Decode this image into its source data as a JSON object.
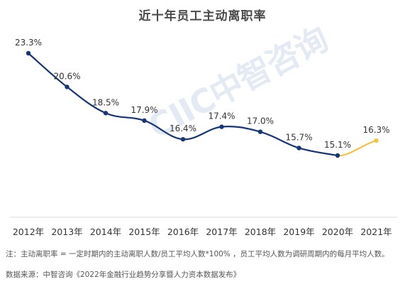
{
  "watermark_text": "CIIC中智咨询",
  "note": "注：主动离职率 = 一定时期内的主动离职人数/员工平均人数*100% ，员工平均人数为调研周期内的每月平均人数。",
  "source": "数据来源：中智咨询《2022年金融行业趋势分享暨人力资本数据发布》",
  "colors": {
    "line": "#16357a",
    "projection": "#f5c242",
    "axis": "#d9d9d9",
    "label": "#333333"
  },
  "chart_data": {
    "type": "line",
    "title": "近十年员工主动离职率",
    "categories": [
      "2012年",
      "2013年",
      "2014年",
      "2015年",
      "2016年",
      "2017年",
      "2018年",
      "2019年",
      "2020年",
      "2021年"
    ],
    "values": [
      23.3,
      20.6,
      18.5,
      17.9,
      16.4,
      17.4,
      17.0,
      15.7,
      15.1,
      16.3
    ],
    "data_labels": [
      "23.3%",
      "20.6%",
      "18.5%",
      "17.9%",
      "16.4%",
      "17.4%",
      "17.0%",
      "15.7%",
      "15.1%",
      "16.3%"
    ],
    "highlight_last_segment": true,
    "ylim": [
      12,
      25
    ],
    "grid": false,
    "legend": "none"
  }
}
